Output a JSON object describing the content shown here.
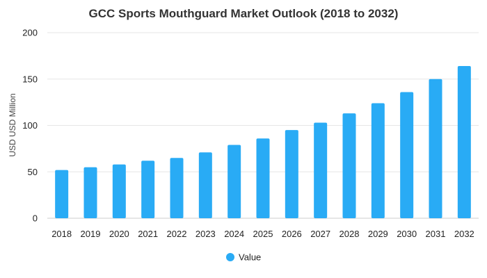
{
  "chart_data": {
    "type": "bar",
    "title": "GCC Sports Mouthguard Market Outlook (2018 to 2032)",
    "xlabel": "",
    "ylabel": "USD USD Million",
    "ylim": [
      0,
      200
    ],
    "yticks": [
      0,
      50,
      100,
      150,
      200
    ],
    "grid": true,
    "legend_position": "bottom",
    "categories": [
      "2018",
      "2019",
      "2020",
      "2021",
      "2022",
      "2023",
      "2024",
      "2025",
      "2026",
      "2027",
      "2028",
      "2029",
      "2030",
      "2031",
      "2032"
    ],
    "series": [
      {
        "name": "Value",
        "color": "#29abf5",
        "values": [
          52,
          55,
          58,
          62,
          65,
          71,
          79,
          86,
          95,
          103,
          113,
          124,
          136,
          150,
          164
        ]
      }
    ]
  }
}
